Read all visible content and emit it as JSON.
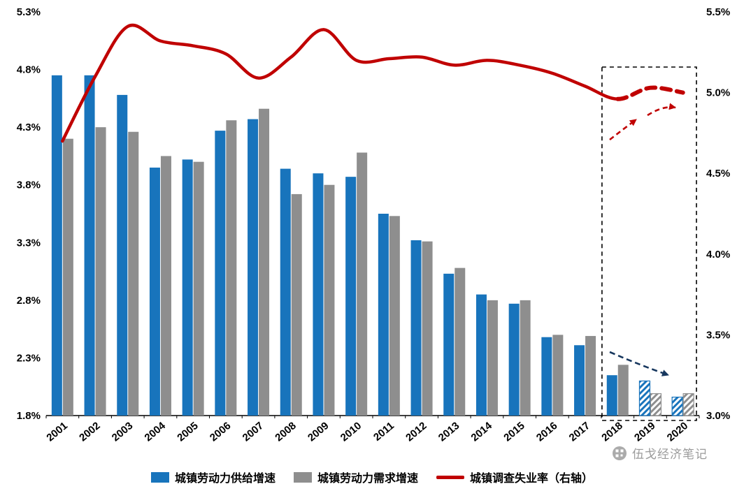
{
  "chart_data": {
    "type": "bar+line",
    "categories": [
      "2001",
      "2002",
      "2003",
      "2004",
      "2005",
      "2006",
      "2007",
      "2008",
      "2009",
      "2010",
      "2011",
      "2012",
      "2013",
      "2014",
      "2015",
      "2016",
      "2017",
      "2018",
      "2019",
      "2020"
    ],
    "series": [
      {
        "name": "城镇劳动力供给增速",
        "type": "bar",
        "axis": "left",
        "color": "#1874BC",
        "values": [
          4.75,
          4.75,
          4.58,
          3.95,
          4.02,
          4.27,
          4.37,
          3.94,
          3.9,
          3.87,
          3.55,
          3.32,
          3.03,
          2.85,
          2.77,
          2.48,
          2.41,
          2.15,
          2.1,
          1.96
        ]
      },
      {
        "name": "城镇劳动力需求增速",
        "type": "bar",
        "axis": "left",
        "color": "#8E8E8E",
        "values": [
          4.2,
          4.3,
          4.26,
          4.05,
          4.0,
          4.36,
          4.46,
          3.72,
          3.8,
          4.08,
          3.53,
          3.31,
          3.08,
          2.8,
          2.8,
          2.5,
          2.49,
          2.24,
          1.99,
          1.99
        ]
      },
      {
        "name": "城镇调查失业率（右轴）",
        "type": "line",
        "axis": "right",
        "color": "#C00000",
        "dash_from": "2018",
        "values": [
          4.7,
          5.1,
          5.41,
          5.32,
          5.29,
          5.24,
          5.09,
          5.22,
          5.39,
          5.2,
          5.21,
          5.22,
          5.17,
          5.2,
          5.17,
          5.12,
          5.04,
          4.96,
          5.03,
          5.0
        ]
      }
    ],
    "left_axis": {
      "min": 1.8,
      "max": 5.3,
      "tick_values": [
        1.8,
        2.3,
        2.8,
        3.3,
        3.8,
        4.3,
        4.8,
        5.3
      ],
      "tick_labels": [
        "1.8%",
        "2.3%",
        "2.8%",
        "3.3%",
        "3.8%",
        "4.3%",
        "4.8%",
        "5.3%"
      ]
    },
    "right_axis": {
      "min": 3.0,
      "max": 5.5,
      "tick_values": [
        3.0,
        3.5,
        4.0,
        4.5,
        5.0,
        5.5
      ],
      "tick_labels": [
        "3.0%",
        "3.5%",
        "4.0%",
        "4.5%",
        "5.0%",
        "5.5%"
      ]
    },
    "hatched_years": [
      "2019",
      "2020"
    ],
    "forecast_box_years": [
      "2018",
      "2019",
      "2020"
    ],
    "grid": false,
    "legend_position": "bottom",
    "annotations": [
      {
        "name": "unemployment-up-arrow-1",
        "style": "dashed-arrow",
        "color": "#C00000"
      },
      {
        "name": "unemployment-up-arrow-2",
        "style": "dashed-arrow",
        "color": "#C00000"
      },
      {
        "name": "labor-growth-down-arrow",
        "style": "dashed-arrow",
        "color": "#17375E"
      }
    ]
  },
  "legend": {
    "items": [
      {
        "label": "城镇劳动力供给增速",
        "color": "#1874BC",
        "marker": "square"
      },
      {
        "label": "城镇劳动力需求增速",
        "color": "#8E8E8E",
        "marker": "square"
      },
      {
        "label": "城镇调查失业率（右轴）",
        "color": "#C00000",
        "marker": "line"
      }
    ]
  },
  "watermark": {
    "text": "伍戈经济笔记"
  }
}
